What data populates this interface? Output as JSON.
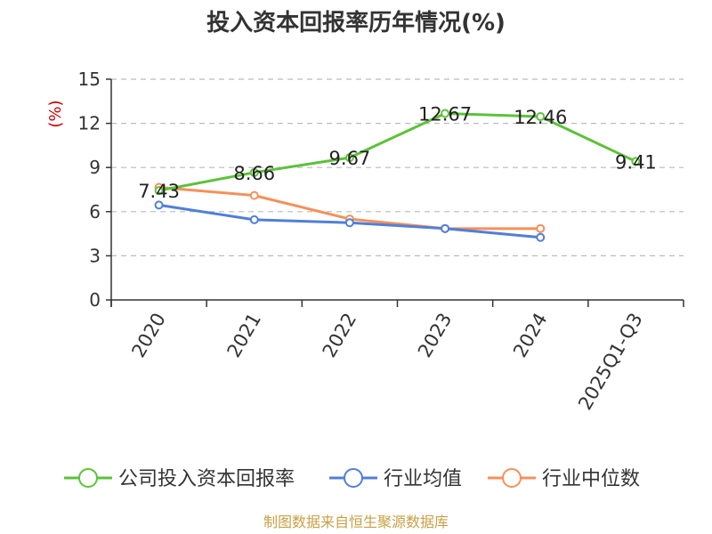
{
  "chart_data": {
    "type": "line",
    "title": "投入资本回报率历年情况(%)",
    "ylabel": "(%)",
    "categories": [
      "2020",
      "2021",
      "2022",
      "2023",
      "2024",
      "2025Q1-Q3"
    ],
    "ylim": [
      0,
      15
    ],
    "yticks": [
      0,
      3,
      6,
      9,
      12,
      15
    ],
    "grid": true,
    "legend_position": "bottom",
    "series": [
      {
        "name": "公司投入资本回报率",
        "color": "#5cc23a",
        "values": [
          7.43,
          8.66,
          9.67,
          12.67,
          12.46,
          9.41
        ],
        "labels": [
          "7.43",
          "8.66",
          "9.67",
          "12.67",
          "12.46",
          "9.41"
        ]
      },
      {
        "name": "行业均值",
        "color": "#4f7fd9",
        "values": [
          6.45,
          5.45,
          5.25,
          4.85,
          4.25,
          null
        ]
      },
      {
        "name": "行业中位数",
        "color": "#f5905a",
        "values": [
          7.65,
          7.1,
          5.5,
          4.85,
          4.85,
          null
        ]
      }
    ]
  },
  "source_text": "制图数据来自恒生聚源数据库"
}
